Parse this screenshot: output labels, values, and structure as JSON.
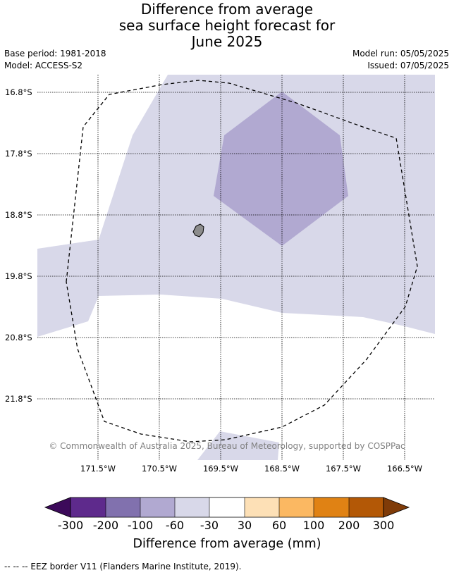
{
  "title": {
    "line1": "Difference from average",
    "line2": "sea surface height forecast for",
    "line3": "June 2025"
  },
  "meta": {
    "base_period": "Base period: 1981-2018",
    "model": "Model: ACCESS-S2",
    "model_run": "Model run: 05/05/2025",
    "issued": "Issued: 07/05/2025"
  },
  "map": {
    "lat_labels": [
      "16.8°S",
      "17.8°S",
      "18.8°S",
      "19.8°S",
      "20.8°S",
      "21.8°S"
    ],
    "lon_labels": [
      "171.5°W",
      "170.5°W",
      "169.5°W",
      "168.5°W",
      "167.5°W",
      "166.5°W"
    ],
    "copyright": "© Commonwealth of Australia 2025, Bureau of Meteorology, supported by COSPPac",
    "colors": {
      "lavender_light": "#d8d8e9",
      "lavender_mid": "#b1a9d1",
      "island": "#8c8c8c"
    }
  },
  "colorbar": {
    "labels": [
      "-300",
      "-200",
      "-100",
      "-60",
      "-30",
      "30",
      "60",
      "100",
      "200",
      "300"
    ],
    "colors": [
      "#3c0a5a",
      "#5e2a8c",
      "#8171ae",
      "#b1a9d1",
      "#d8d8e9",
      "#ffffff",
      "#fde0b6",
      "#fbb862",
      "#e08214",
      "#b35806",
      "#7f3b08"
    ],
    "title": "Difference from average (mm)"
  },
  "footnote": "--  --  -- EEZ border V11 (Flanders Marine Institute, 2019)."
}
